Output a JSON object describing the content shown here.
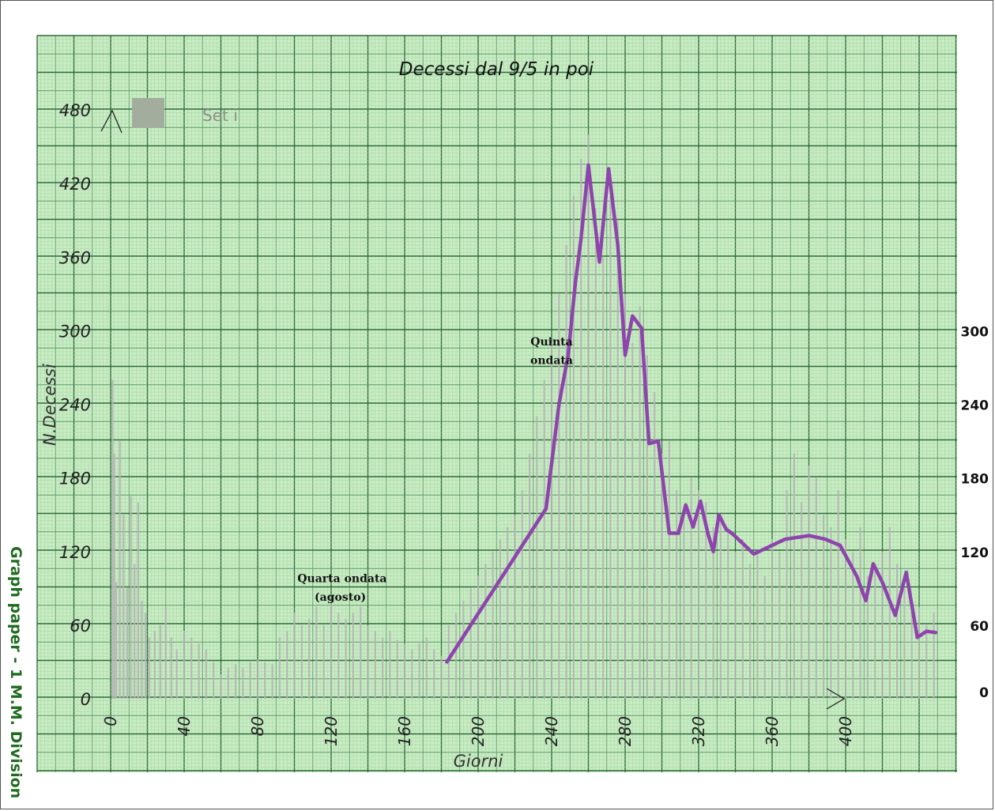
{
  "chart_data": {
    "type": "line",
    "title": "Decessi dal 9/5 in poi",
    "xlabel": "Giorni",
    "ylabel": "N.Decessi",
    "xlim": [
      0,
      460
    ],
    "ylim": [
      0,
      480
    ],
    "grid": true,
    "legend_position": "top-left",
    "x_ticks": [
      0,
      40,
      80,
      120,
      160,
      200,
      240,
      280,
      320,
      360,
      400
    ],
    "y_ticks_left": [
      0,
      60,
      120,
      180,
      240,
      300,
      360,
      420,
      480
    ],
    "y_ticks_right": [
      0,
      60,
      120,
      180,
      240,
      300
    ],
    "series": [
      {
        "name": "Set i",
        "style": "daily bars",
        "color": "#b4b4b4",
        "x": [
          1,
          2,
          3,
          5,
          7,
          9,
          11,
          13,
          15,
          17,
          19,
          21,
          24,
          27,
          30,
          33,
          36,
          40,
          44,
          48,
          52,
          56,
          60,
          64,
          68,
          72,
          76,
          80,
          84,
          88,
          92,
          96,
          100,
          104,
          108,
          112,
          116,
          120,
          124,
          128,
          132,
          136,
          140,
          144,
          148,
          152,
          156,
          160,
          164,
          168,
          172,
          176,
          180,
          184,
          188,
          192,
          196,
          200,
          204,
          208,
          212,
          216,
          220,
          224,
          228,
          232,
          236,
          240,
          244,
          248,
          252,
          256,
          260,
          264,
          268,
          272,
          276,
          280,
          284,
          288,
          292,
          296,
          300,
          304,
          308,
          312,
          316,
          320,
          324,
          328,
          332,
          336,
          340,
          344,
          348,
          352,
          356,
          360,
          364,
          368,
          372,
          376,
          380,
          384,
          388,
          392,
          396,
          400,
          404,
          408,
          412,
          416,
          420,
          424,
          428,
          432,
          436,
          440,
          444,
          448
        ],
        "values": [
          260,
          200,
          95,
          210,
          150,
          90,
          165,
          110,
          160,
          80,
          70,
          50,
          55,
          60,
          75,
          50,
          40,
          55,
          50,
          45,
          40,
          30,
          20,
          25,
          28,
          25,
          30,
          32,
          30,
          28,
          50,
          55,
          70,
          60,
          65,
          75,
          60,
          80,
          70,
          65,
          70,
          75,
          60,
          55,
          50,
          55,
          48,
          45,
          40,
          45,
          50,
          40,
          35,
          60,
          70,
          80,
          90,
          100,
          110,
          120,
          130,
          140,
          150,
          170,
          200,
          230,
          260,
          290,
          330,
          370,
          410,
          440,
          460,
          400,
          360,
          410,
          390,
          330,
          290,
          320,
          280,
          250,
          200,
          210,
          170,
          150,
          180,
          170,
          160,
          140,
          150,
          140,
          120,
          130,
          110,
          120,
          100,
          130,
          120,
          170,
          200,
          160,
          190,
          180,
          150,
          140,
          170,
          130,
          120,
          140,
          100,
          110,
          120,
          140,
          110,
          90,
          80,
          75,
          60,
          70
        ]
      },
      {
        "name": "",
        "style": "line",
        "color": "#8e44ad",
        "x": [
          183,
          237,
          239,
          244,
          249,
          253,
          256,
          260,
          266,
          271,
          276,
          280,
          284,
          289,
          293,
          298,
          304,
          309,
          313,
          317,
          321,
          325,
          328,
          331,
          335,
          338,
          343,
          350,
          367,
          380,
          389,
          397,
          406,
          411,
          415,
          420,
          427,
          433,
          439,
          444,
          449
        ],
        "values": [
          30,
          155,
          180,
          240,
          280,
          340,
          375,
          435,
          356,
          432,
          370,
          280,
          312,
          302,
          208,
          210,
          135,
          135,
          158,
          140,
          161,
          135,
          120,
          150,
          138,
          135,
          128,
          118,
          130,
          133,
          130,
          125,
          100,
          80,
          110,
          95,
          68,
          103,
          50,
          55,
          54
        ]
      }
    ],
    "annotations": [
      {
        "text": "Quinta",
        "x": 240,
        "y": 288
      },
      {
        "text": "ondata",
        "x": 240,
        "y": 273
      },
      {
        "text": "Quarta ondata",
        "x": 126,
        "y": 95
      },
      {
        "text": "(agosto)",
        "x": 125,
        "y": 80
      }
    ]
  },
  "side_text": "Graph paper - 1 M.M. Division"
}
